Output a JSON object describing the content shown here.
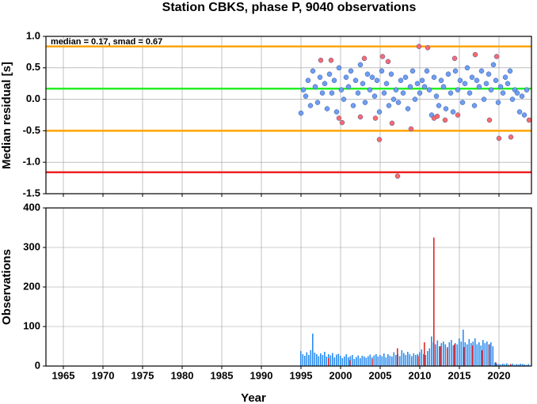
{
  "chart_data": [
    {
      "type": "scatter",
      "title": "Station CBKS, phase P, 9040 observations",
      "ylabel": "Median residual [s]",
      "annotation": "median = 0.17, smad = 0.67",
      "xlim": [
        1962.8,
        2024.1
      ],
      "xticks": [
        1965,
        1970,
        1975,
        1980,
        1985,
        1990,
        1995,
        2000,
        2005,
        2010,
        2015,
        2020
      ],
      "ylim": [
        -1.5,
        1.0
      ],
      "yticks": [
        {
          "value": -1.5,
          "label": "-1.5"
        },
        {
          "value": -1.0,
          "label": "-1.0"
        },
        {
          "value": -0.5,
          "label": "-0.5"
        },
        {
          "value": 0,
          "label": "0.0"
        },
        {
          "value": 0.5,
          "label": "0.5"
        },
        {
          "value": 1.0,
          "label": "1.0"
        }
      ],
      "grid": true,
      "hlines": [
        {
          "value": 0.84,
          "color": "#ffa500"
        },
        {
          "value": 0.17,
          "color": "#22ee22"
        },
        {
          "value": -0.5,
          "color": "#ffa500"
        },
        {
          "value": -1.16,
          "color": "#ee2020"
        }
      ],
      "series": [
        {
          "color": "#6f9ef0",
          "x": [
            1995,
            1995.3,
            1995.6,
            1995.9,
            1996.2,
            1996.5,
            1996.8,
            1997.1,
            1997.4,
            1997.7,
            1998,
            1998.3,
            1998.6,
            1998.9,
            1999.2,
            1999.5,
            1999.8,
            2000.1,
            2000.4,
            2000.7,
            2001,
            2001.3,
            2001.6,
            2001.9,
            2002.2,
            2002.5,
            2002.8,
            2003.1,
            2003.4,
            2003.7,
            2004,
            2004.3,
            2004.6,
            2004.9,
            2005.2,
            2005.5,
            2005.8,
            2006.1,
            2006.4,
            2006.7,
            2007,
            2007.3,
            2007.6,
            2007.9,
            2008.2,
            2008.5,
            2008.8,
            2009.1,
            2009.4,
            2009.7,
            2010,
            2010.3,
            2010.6,
            2010.9,
            2011.2,
            2011.5,
            2011.8,
            2012.1,
            2012.4,
            2012.7,
            2013,
            2013.3,
            2013.6,
            2013.9,
            2014.2,
            2014.5,
            2014.8,
            2015.1,
            2015.4,
            2015.7,
            2016,
            2016.3,
            2016.6,
            2016.9,
            2017.2,
            2017.5,
            2017.8,
            2018.1,
            2018.4,
            2018.7,
            2019,
            2019.3,
            2019.6,
            2019.9,
            2020.2,
            2020.5,
            2020.8,
            2021.1,
            2021.4,
            2021.7,
            2022,
            2022.3,
            2022.6,
            2022.9,
            2023.2,
            2023.5
          ],
          "values": [
            -0.22,
            0.15,
            0.05,
            0.3,
            -0.1,
            0.45,
            0.2,
            -0.05,
            0.35,
            0.1,
            0.25,
            -0.15,
            0.4,
            0.1,
            0.3,
            -0.2,
            0.5,
            0.15,
            0.0,
            0.35,
            0.2,
            0.45,
            -0.1,
            0.3,
            0.1,
            0.55,
            0.25,
            -0.05,
            0.4,
            0.15,
            0.35,
            0.05,
            0.3,
            -0.2,
            0.45,
            0.1,
            0.25,
            -0.1,
            0.4,
            0.0,
            0.15,
            -0.05,
            0.3,
            0.1,
            0.35,
            -0.15,
            0.2,
            0.45,
            0.0,
            0.25,
            0.1,
            0.3,
            0.2,
            0.45,
            0.15,
            -0.25,
            0.35,
            0.05,
            -0.1,
            0.3,
            0.2,
            -0.15,
            0.4,
            0.1,
            -0.2,
            0.45,
            0.15,
            0.3,
            -0.05,
            0.25,
            0.5,
            0.1,
            0.35,
            -0.1,
            0.3,
            0.2,
            0.45,
            0.0,
            0.25,
            0.4,
            0.15,
            0.55,
            0.3,
            -0.05,
            0.2,
            0.1,
            0.35,
            0.25,
            0.45,
            0.0,
            0.15,
            0.1,
            -0.2,
            0.05,
            -0.25,
            0.15
          ]
        },
        {
          "color": "#ff6a6a",
          "x": [
            1997.5,
            1998.8,
            1999.8,
            2000.2,
            2002.5,
            2003.0,
            2004.4,
            2004.9,
            2005.3,
            2006.0,
            2006.5,
            2007.2,
            2008.9,
            2009.9,
            2011.0,
            2011.8,
            2012.2,
            2013.2,
            2014.4,
            2014.8,
            2017.0,
            2018.8,
            2019.7,
            2020.0,
            2021.5,
            2023.8
          ],
          "values": [
            0.62,
            0.62,
            -0.3,
            -0.37,
            -0.28,
            0.65,
            -0.3,
            -0.64,
            0.68,
            0.6,
            -0.38,
            -1.22,
            -0.47,
            0.84,
            0.82,
            -0.3,
            -0.27,
            -0.33,
            0.65,
            -0.25,
            0.71,
            -0.33,
            0.68,
            -0.62,
            -0.6,
            -0.33
          ]
        }
      ]
    },
    {
      "type": "bar",
      "ylabel": "Observations",
      "xlabel": "Year",
      "xlim": [
        1962.8,
        2024.1
      ],
      "xticks": [
        1965,
        1970,
        1975,
        1980,
        1985,
        1990,
        1995,
        2000,
        2005,
        2010,
        2015,
        2020
      ],
      "ylim": [
        0,
        400
      ],
      "yticks": [
        0,
        100,
        200,
        300,
        400
      ],
      "grid": true,
      "series": [
        {
          "color": "#2b8cf0",
          "x": [
            1995,
            1995.25,
            1995.5,
            1995.75,
            1996,
            1996.25,
            1996.5,
            1996.75,
            1997,
            1997.25,
            1997.5,
            1997.75,
            1998,
            1998.25,
            1998.5,
            1998.75,
            1999,
            1999.25,
            1999.5,
            1999.75,
            2000,
            2000.25,
            2000.5,
            2000.75,
            2001,
            2001.25,
            2001.5,
            2001.75,
            2002,
            2002.25,
            2002.5,
            2002.75,
            2003,
            2003.25,
            2003.5,
            2003.75,
            2004,
            2004.25,
            2004.5,
            2004.75,
            2005,
            2005.25,
            2005.5,
            2005.75,
            2006,
            2006.25,
            2006.5,
            2006.75,
            2007,
            2007.25,
            2007.5,
            2007.75,
            2008,
            2008.25,
            2008.5,
            2008.75,
            2009,
            2009.25,
            2009.5,
            2009.75,
            2010,
            2010.25,
            2010.5,
            2010.75,
            2011,
            2011.25,
            2011.5,
            2011.75,
            2012,
            2012.25,
            2012.5,
            2012.75,
            2013,
            2013.25,
            2013.5,
            2013.75,
            2014,
            2014.25,
            2014.5,
            2014.75,
            2015,
            2015.25,
            2015.5,
            2015.75,
            2016,
            2016.25,
            2016.5,
            2016.75,
            2017,
            2017.25,
            2017.5,
            2017.75,
            2018,
            2018.25,
            2018.5,
            2018.75,
            2019,
            2019.25,
            2019.5,
            2019.75,
            2020,
            2020.25,
            2020.5,
            2020.75,
            2021,
            2021.25,
            2021.5,
            2021.75,
            2022,
            2022.25,
            2022.5,
            2022.75,
            2023,
            2023.25,
            2023.5,
            2023.75
          ],
          "values": [
            38,
            30,
            26,
            35,
            28,
            40,
            82,
            34,
            30,
            25,
            32,
            28,
            36,
            24,
            30,
            27,
            33,
            22,
            29,
            31,
            26,
            20,
            24,
            30,
            22,
            25,
            28,
            18,
            23,
            27,
            20,
            26,
            24,
            21,
            25,
            29,
            22,
            27,
            30,
            24,
            28,
            25,
            32,
            22,
            30,
            26,
            24,
            35,
            28,
            30,
            25,
            40,
            33,
            28,
            36,
            30,
            25,
            32,
            28,
            30,
            35,
            42,
            30,
            28,
            38,
            45,
            75,
            60,
            55,
            65,
            50,
            58,
            62,
            55,
            48,
            60,
            66,
            52,
            58,
            55,
            70,
            62,
            92,
            60,
            55,
            68,
            58,
            62,
            70,
            55,
            60,
            52,
            66,
            58,
            62,
            55,
            60,
            50,
            8,
            6,
            5,
            4,
            6,
            5,
            7,
            4,
            5,
            6,
            3,
            5,
            4,
            6,
            5,
            4,
            3,
            5
          ]
        },
        {
          "color": "#e02828",
          "x": [
            1998.5,
            2001.2,
            2004.0,
            2007.2,
            2009.8,
            2010.6,
            2011.8,
            2012.6,
            2013.5,
            2014.4,
            2015.6,
            2016.7,
            2017.9,
            2018.8,
            2019.6,
            2021.5
          ],
          "values": [
            20,
            15,
            18,
            45,
            25,
            60,
            325,
            50,
            45,
            55,
            48,
            52,
            40,
            55,
            10,
            5
          ]
        }
      ]
    }
  ]
}
